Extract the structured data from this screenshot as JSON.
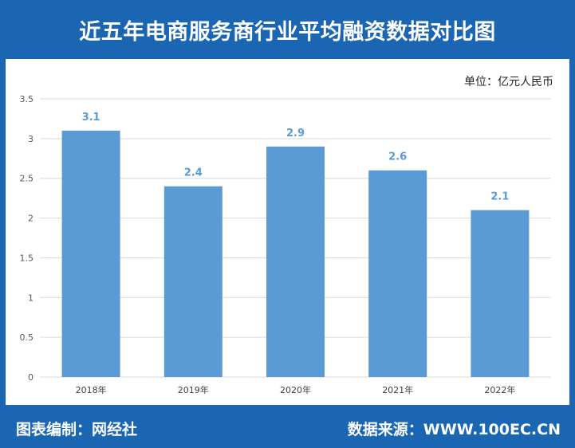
{
  "title": "近五年电商服务商行业平均融资数据对比图",
  "unit_label": "单位：亿元人民币",
  "footer": {
    "made_by": "图表编制：网经社",
    "source": "数据来源：WWW.100EC.CN"
  },
  "colors": {
    "brand_blue": "#1a66b3",
    "bar": "#5b9bd5",
    "data_label": "#5b9bd5",
    "grid": "#d9d9d9"
  },
  "chart_data": {
    "type": "bar",
    "categories": [
      "2018年",
      "2019年",
      "2020年",
      "2021年",
      "2022年"
    ],
    "values": [
      3.1,
      2.4,
      2.9,
      2.6,
      2.1
    ],
    "value_labels": [
      "3.1",
      "2.4",
      "2.9",
      "2.6",
      "2.1"
    ],
    "y_ticks": [
      "0",
      "0.5",
      "1",
      "1.5",
      "2",
      "2.5",
      "3",
      "3.5"
    ],
    "ylim": [
      0,
      3.5
    ],
    "title": "近五年电商服务商行业平均融资数据对比图",
    "xlabel": "",
    "ylabel": "",
    "grid": true,
    "legend": "none"
  }
}
